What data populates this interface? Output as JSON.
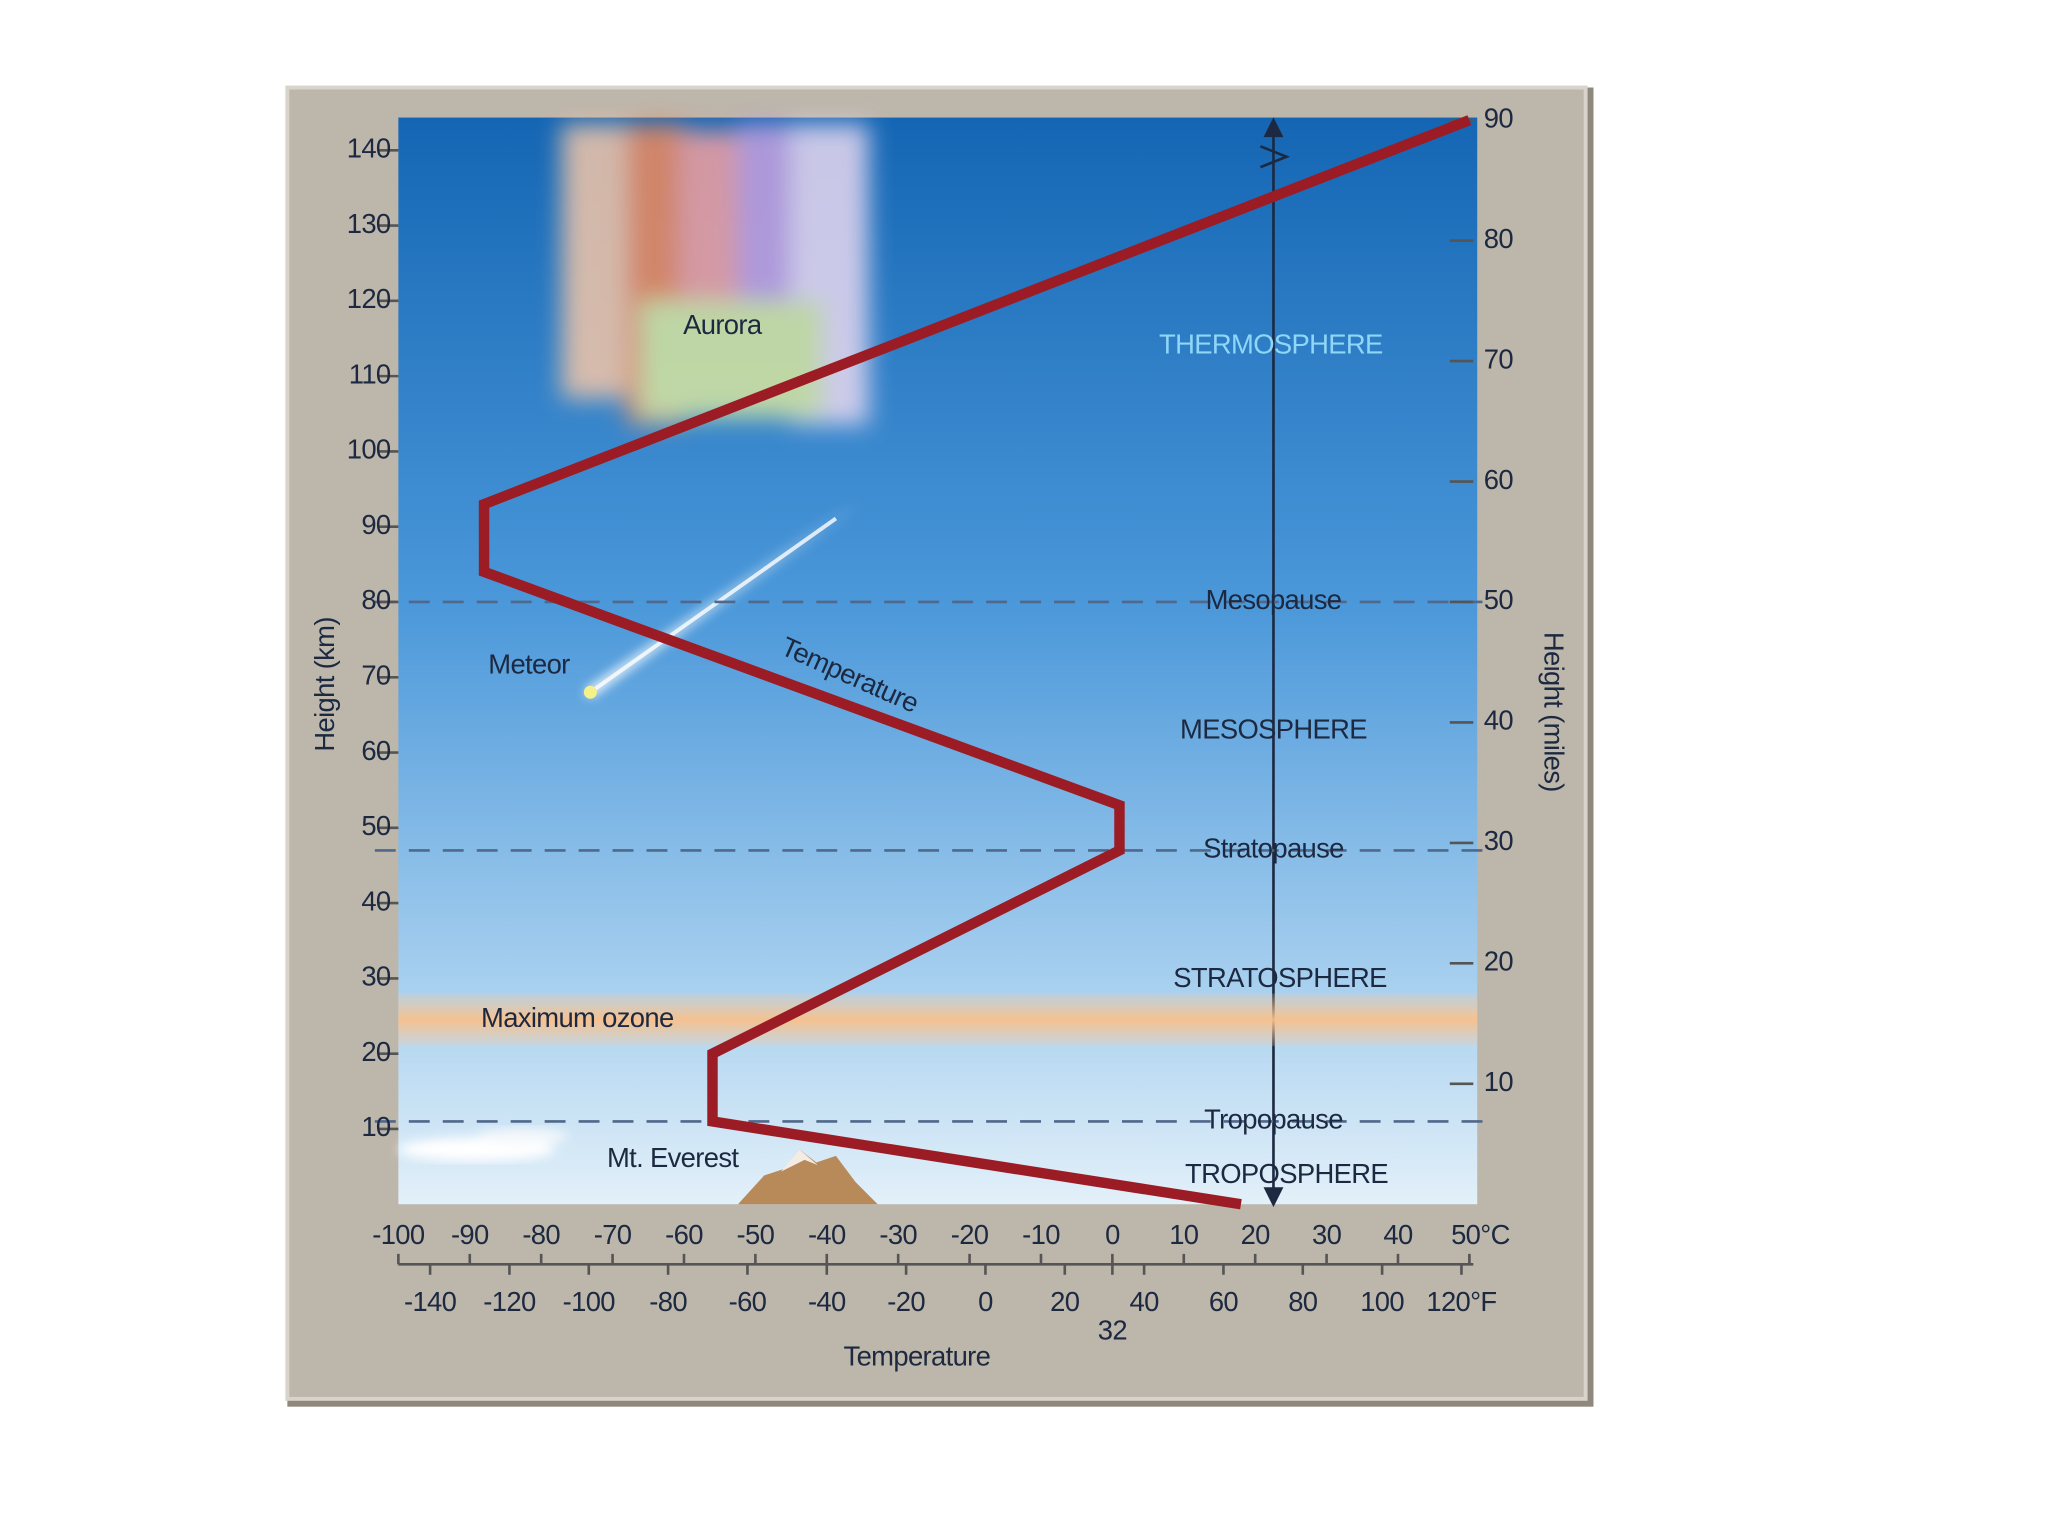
{
  "chart_data": {
    "type": "line",
    "xlabel": "Temperature",
    "ylabel": "Height (km)",
    "y2label": "Height (miles)",
    "x": [
      18,
      -56,
      -56,
      1,
      1,
      -88,
      -88,
      50
    ],
    "series": [
      {
        "name": "Temperature",
        "color": "#9b1c24",
        "values": [
          0,
          11,
          20,
          47,
          53,
          84,
          93,
          144
        ]
      }
    ],
    "xlim": [
      -100,
      50
    ],
    "xticks": [
      -100,
      -90,
      -80,
      -70,
      -60,
      -50,
      -40,
      -30,
      -20,
      -10,
      0,
      10,
      20,
      30,
      40,
      {
        "value": 50,
        "label": "50°C"
      }
    ],
    "x2lim": [
      -148,
      122
    ],
    "x2ticks": [
      -140,
      -120,
      -100,
      -80,
      -60,
      -40,
      -20,
      0,
      20,
      40,
      60,
      80,
      100,
      {
        "value": 120,
        "label": "120°F"
      },
      {
        "value": 32,
        "label": "32"
      }
    ],
    "ylim": [
      0,
      144
    ],
    "yticks": [
      10,
      20,
      30,
      40,
      50,
      60,
      70,
      80,
      90,
      100,
      110,
      120,
      130,
      140
    ],
    "y2lim": [
      0,
      90
    ],
    "y2ticks": [
      10,
      20,
      30,
      40,
      50,
      60,
      70,
      80,
      90
    ],
    "layers": [
      "THERMOSPHERE",
      "MESOSPHERE",
      "STRATOSPHERE",
      "TROPOSPHERE"
    ],
    "boundaries": [
      {
        "label": "Mesopause",
        "value": 80
      },
      {
        "label": "Stratopause",
        "value": 47
      },
      {
        "label": "Tropopause",
        "value": 11
      }
    ],
    "ozone_band": {
      "label": "Maximum ozone",
      "range": [
        21,
        28
      ]
    },
    "annotations": [
      "Aurora",
      "Meteor",
      "Mt. Everest"
    ]
  }
}
